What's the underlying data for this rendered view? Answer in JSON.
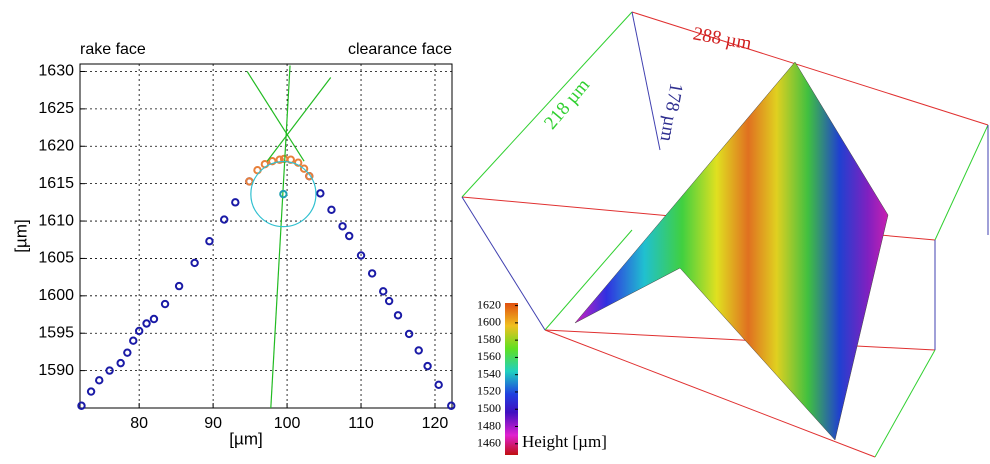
{
  "chart_data": [
    {
      "type": "scatter",
      "annotations": [
        "rake face",
        "clearance face"
      ],
      "xlabel": "[µm]",
      "ylabel": "[µm]",
      "xlim": [
        72,
        122.3
      ],
      "ylim": [
        1585,
        1631
      ],
      "xticks": [
        80,
        90,
        100,
        110,
        120
      ],
      "yticks": [
        1590,
        1595,
        1600,
        1605,
        1610,
        1615,
        1620,
        1625,
        1630
      ],
      "grid": true,
      "series": [
        {
          "color": "#1a1aa6",
          "style": "markers",
          "x": [
            72.2,
            73.5,
            74.6,
            76,
            77.5,
            78.4,
            79.2,
            80,
            81,
            82,
            83.5,
            85.4,
            87.5,
            89.5,
            91.5,
            93,
            94.9
          ],
          "values": [
            1585.3,
            1587.2,
            1588.7,
            1590,
            1591,
            1592.4,
            1594,
            1595.3,
            1596.3,
            1596.9,
            1598.9,
            1601.3,
            1604.4,
            1607.3,
            1610.2,
            1612.5,
            1615.3
          ]
        },
        {
          "color": "#1a1aa6",
          "style": "markers",
          "x": [
            103,
            104.5,
            106,
            107.5,
            108.4,
            110,
            111.5,
            113,
            113.8,
            115,
            116.5,
            117.8,
            119,
            120.5,
            122.2
          ],
          "values": [
            1616,
            1613.7,
            1611.5,
            1609.3,
            1608,
            1605.4,
            1603,
            1600.6,
            1599.3,
            1597.4,
            1594.9,
            1592.7,
            1590.6,
            1588.1,
            1585.3
          ]
        },
        {
          "color": "#e8803a",
          "style": "markers",
          "x": [
            94.9,
            96,
            97,
            98,
            99,
            99.6,
            100.5,
            101.5,
            102.3,
            103
          ],
          "values": [
            1615.3,
            1616.8,
            1617.6,
            1618,
            1618.2,
            1618.3,
            1618.2,
            1617.8,
            1617,
            1616
          ]
        },
        {
          "color": "#22bb22",
          "style": "line",
          "x": [
            97.8,
            100.4
          ],
          "values": [
            1585,
            1630.8
          ]
        },
        {
          "color": "#22bb22",
          "style": "line",
          "x": [
            94.6,
            102.3
          ],
          "values": [
            1630,
            1618
          ]
        },
        {
          "color": "#22bb22",
          "style": "line",
          "x": [
            105.9,
            97.3
          ],
          "values": [
            1629.2,
            1618
          ]
        },
        {
          "color": "#20a0b0",
          "style": "markers",
          "x": [
            99.5
          ],
          "values": [
            1613.6
          ]
        }
      ],
      "circles": [
        {
          "cx": 99.5,
          "cy": 1613.6,
          "r": 4.4,
          "color": "#30c0d0"
        }
      ]
    },
    {
      "type": "surface3d",
      "edge_labels": [
        "288 µm",
        "218 µm",
        "178 µm"
      ],
      "colorbar_label": "Height [µm]",
      "colorbar_lim": [
        1447,
        1623
      ],
      "colorbar_ticks": [
        1460,
        1480,
        1500,
        1520,
        1540,
        1560,
        1580,
        1600,
        1620
      ]
    }
  ]
}
